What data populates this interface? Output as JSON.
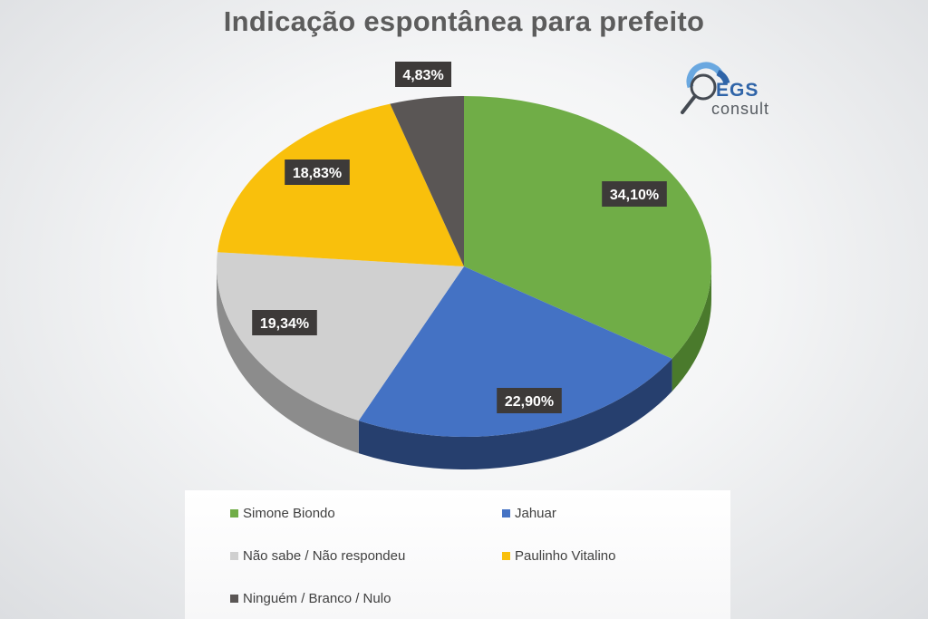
{
  "title": "Indicação espontânea para prefeito",
  "logo": {
    "name": "EGS",
    "sub": "consult",
    "icon": "magnifier-icon",
    "colors": {
      "blue": "#2f64a8",
      "light_blue": "#6aa8e0",
      "grey": "#555a60"
    }
  },
  "chart_data": {
    "type": "pie",
    "style": "3d",
    "title": "Indicação espontânea para prefeito",
    "slices": [
      {
        "label": "Simone Biondo",
        "value": 34.1,
        "display": "34,10%",
        "color": "#70ad47",
        "side_color": "#4a7a2c"
      },
      {
        "label": "Jahuar",
        "value": 22.9,
        "display": "22,90%",
        "color": "#4472c4",
        "side_color": "#263f6e"
      },
      {
        "label": "Não sabe / Não respondeu",
        "value": 19.34,
        "display": "19,34%",
        "color": "#d0d0d0",
        "side_color": "#8c8c8c"
      },
      {
        "label": "Paulinho Vitalino",
        "value": 18.83,
        "display": "18,83%",
        "color": "#f9c00c",
        "side_color": "#b38708"
      },
      {
        "label": "Ninguém / Branco / Nulo",
        "value": 4.83,
        "display": "4,83%",
        "color": "#5a5655",
        "side_color": "#3a3635"
      }
    ],
    "legend": {
      "position": "bottom",
      "columns": 2,
      "items": [
        {
          "label": "Simone Biondo",
          "color": "#70ad47"
        },
        {
          "label": "Jahuar",
          "color": "#4472c4"
        },
        {
          "label": "Não sabe / Não respondeu",
          "color": "#d0d0d0"
        },
        {
          "label": "Paulinho Vitalino",
          "color": "#f9c00c"
        },
        {
          "label": "Ninguém / Branco / Nulo",
          "color": "#5a5655"
        }
      ]
    },
    "label_box_color": "#3d3a39",
    "label_text_color": "#ffffff"
  }
}
